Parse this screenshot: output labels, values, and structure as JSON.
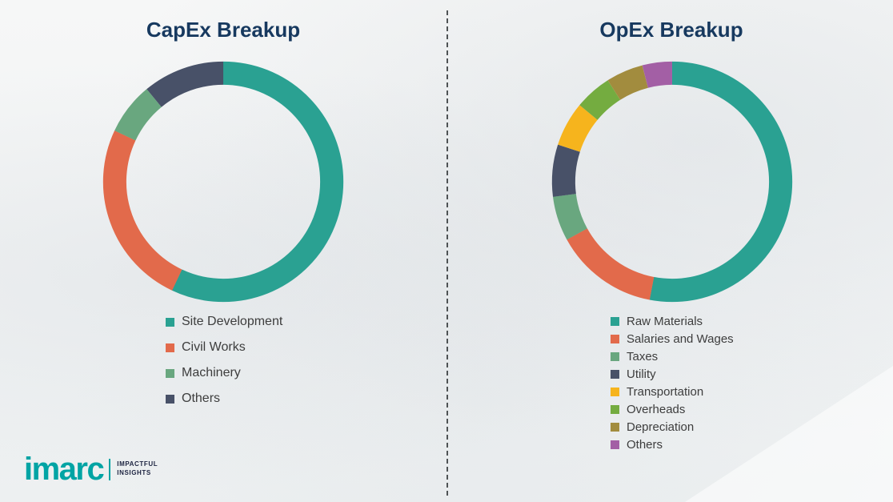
{
  "theme": {
    "title_color": "#17395f",
    "legend_text_color": "#3d3d3d",
    "divider_color": "#4f5355",
    "brand_teal": "#00a4a4"
  },
  "logo": {
    "brand": "imarc",
    "tagline_line1": "IMPACTFUL",
    "tagline_line2": "INSIGHTS"
  },
  "chart_data": [
    {
      "type": "pie",
      "subtype": "donut",
      "title": "CapEx Breakup",
      "legend_position": "below-left",
      "categories": [
        "Site Development",
        "Civil Works",
        "Machinery",
        "Others"
      ],
      "values": [
        57,
        25,
        7,
        11
      ],
      "colors": [
        "#2aa192",
        "#e26a4b",
        "#69a77f",
        "#485168"
      ]
    },
    {
      "type": "pie",
      "subtype": "donut",
      "title": "OpEx Breakup",
      "legend_position": "below-left",
      "categories": [
        "Raw Materials",
        "Salaries and Wages",
        "Taxes",
        "Utility",
        "Transportation",
        "Overheads",
        "Depreciation",
        "Others"
      ],
      "values": [
        53,
        14,
        6,
        7,
        6,
        5,
        5,
        4
      ],
      "colors": [
        "#2aa192",
        "#e26a4b",
        "#69a77f",
        "#485168",
        "#f6b41d",
        "#74ac40",
        "#a28c3e",
        "#a35fa5"
      ]
    }
  ]
}
